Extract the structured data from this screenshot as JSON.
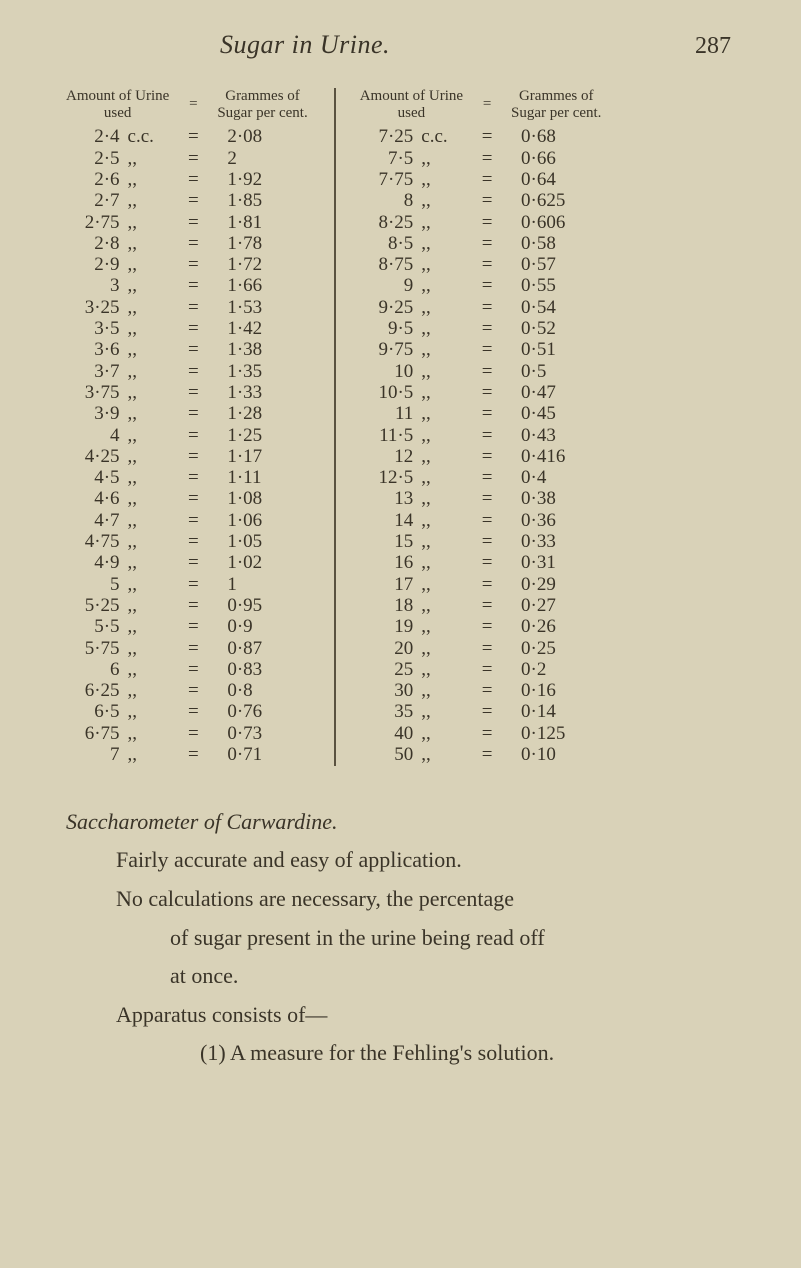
{
  "page": {
    "title": "Sugar in Urine.",
    "number": "287"
  },
  "table": {
    "header": {
      "col1_a": "Amount of Urine",
      "col1_b": "used",
      "eq1": "=",
      "col2_a": "Grammes of",
      "col2_b": "Sugar per cent.",
      "col3_a": "Amount of Urine",
      "col3_b": "used",
      "eq2": "=",
      "col4_a": "Grammes of",
      "col4_b": "Sugar per cent."
    },
    "left": [
      {
        "amount": "2·4",
        "unit": "c.c.",
        "eq": "=",
        "gram": "2·08"
      },
      {
        "amount": "2·5",
        "unit": ",,",
        "eq": "=",
        "gram": "2"
      },
      {
        "amount": "2·6",
        "unit": ",,",
        "eq": "=",
        "gram": "1·92"
      },
      {
        "amount": "2·7",
        "unit": ",,",
        "eq": "=",
        "gram": "1·85"
      },
      {
        "amount": "2·75",
        "unit": ",,",
        "eq": "=",
        "gram": "1·81"
      },
      {
        "amount": "2·8",
        "unit": ",,",
        "eq": "=",
        "gram": "1·78"
      },
      {
        "amount": "2·9",
        "unit": ",,",
        "eq": "=",
        "gram": "1·72"
      },
      {
        "amount": "3",
        "unit": ",,",
        "eq": "=",
        "gram": "1·66"
      },
      {
        "amount": "3·25",
        "unit": ",,",
        "eq": "=",
        "gram": "1·53"
      },
      {
        "amount": "3·5",
        "unit": ",,",
        "eq": "=",
        "gram": "1·42"
      },
      {
        "amount": "3·6",
        "unit": ",,",
        "eq": "=",
        "gram": "1·38"
      },
      {
        "amount": "3·7",
        "unit": ",,",
        "eq": "=",
        "gram": "1·35"
      },
      {
        "amount": "3·75",
        "unit": ",,",
        "eq": "=",
        "gram": "1·33"
      },
      {
        "amount": "3·9",
        "unit": ",,",
        "eq": "=",
        "gram": "1·28"
      },
      {
        "amount": "4",
        "unit": ",,",
        "eq": "=",
        "gram": "1·25"
      },
      {
        "amount": "4·25",
        "unit": ",,",
        "eq": "=",
        "gram": "1·17"
      },
      {
        "amount": "4·5",
        "unit": ",,",
        "eq": "=",
        "gram": "1·11"
      },
      {
        "amount": "4·6",
        "unit": ",,",
        "eq": "=",
        "gram": "1·08"
      },
      {
        "amount": "4·7",
        "unit": ",,",
        "eq": "=",
        "gram": "1·06"
      },
      {
        "amount": "4·75",
        "unit": ",,",
        "eq": "=",
        "gram": "1·05"
      },
      {
        "amount": "4·9",
        "unit": ",,",
        "eq": "=",
        "gram": "1·02"
      },
      {
        "amount": "5",
        "unit": ",,",
        "eq": "=",
        "gram": "1"
      },
      {
        "amount": "5·25",
        "unit": ",,",
        "eq": "=",
        "gram": "0·95"
      },
      {
        "amount": "5·5",
        "unit": ",,",
        "eq": "=",
        "gram": "0·9"
      },
      {
        "amount": "5·75",
        "unit": ",,",
        "eq": "=",
        "gram": "0·87"
      },
      {
        "amount": "6",
        "unit": ",,",
        "eq": "=",
        "gram": "0·83"
      },
      {
        "amount": "6·25",
        "unit": ",,",
        "eq": "=",
        "gram": "0·8"
      },
      {
        "amount": "6·5",
        "unit": ",,",
        "eq": "=",
        "gram": "0·76"
      },
      {
        "amount": "6·75",
        "unit": ",,",
        "eq": "=",
        "gram": "0·73"
      },
      {
        "amount": "7",
        "unit": ",,",
        "eq": "=",
        "gram": "0·71"
      }
    ],
    "right": [
      {
        "amount": "7·25",
        "unit": "c.c.",
        "eq": "=",
        "gram": "0·68"
      },
      {
        "amount": "7·5",
        "unit": ",,",
        "eq": "=",
        "gram": "0·66"
      },
      {
        "amount": "7·75",
        "unit": ",,",
        "eq": "=",
        "gram": "0·64"
      },
      {
        "amount": "8",
        "unit": ",,",
        "eq": "=",
        "gram": "0·625"
      },
      {
        "amount": "8·25",
        "unit": ",,",
        "eq": "=",
        "gram": "0·606"
      },
      {
        "amount": "8·5",
        "unit": ",,",
        "eq": "=",
        "gram": "0·58"
      },
      {
        "amount": "8·75",
        "unit": ",,",
        "eq": "=",
        "gram": "0·57"
      },
      {
        "amount": "9",
        "unit": ",,",
        "eq": "=",
        "gram": "0·55"
      },
      {
        "amount": "9·25",
        "unit": ",,",
        "eq": "=",
        "gram": "0·54"
      },
      {
        "amount": "9·5",
        "unit": ",,",
        "eq": "=",
        "gram": "0·52"
      },
      {
        "amount": "9·75",
        "unit": ",,",
        "eq": "=",
        "gram": "0·51"
      },
      {
        "amount": "10",
        "unit": ",,",
        "eq": "=",
        "gram": "0·5"
      },
      {
        "amount": "10·5",
        "unit": ",,",
        "eq": "=",
        "gram": "0·47"
      },
      {
        "amount": "11",
        "unit": ",,",
        "eq": "=",
        "gram": "0·45"
      },
      {
        "amount": "11·5",
        "unit": ",,",
        "eq": "=",
        "gram": "0·43"
      },
      {
        "amount": "12",
        "unit": ",,",
        "eq": "=",
        "gram": "0·416"
      },
      {
        "amount": "12·5",
        "unit": ",,",
        "eq": "=",
        "gram": "0·4"
      },
      {
        "amount": "13",
        "unit": ",,",
        "eq": "=",
        "gram": "0·38"
      },
      {
        "amount": "14",
        "unit": ",,",
        "eq": "=",
        "gram": "0·36"
      },
      {
        "amount": "15",
        "unit": ",,",
        "eq": "=",
        "gram": "0·33"
      },
      {
        "amount": "16",
        "unit": ",,",
        "eq": "=",
        "gram": "0·31"
      },
      {
        "amount": "17",
        "unit": ",,",
        "eq": "=",
        "gram": "0·29"
      },
      {
        "amount": "18",
        "unit": ",,",
        "eq": "=",
        "gram": "0·27"
      },
      {
        "amount": "19",
        "unit": ",,",
        "eq": "=",
        "gram": "0·26"
      },
      {
        "amount": "20",
        "unit": ",,",
        "eq": "=",
        "gram": "0·25"
      },
      {
        "amount": "25",
        "unit": ",,",
        "eq": "=",
        "gram": "0·2"
      },
      {
        "amount": "30",
        "unit": ",,",
        "eq": "=",
        "gram": "0·16"
      },
      {
        "amount": "35",
        "unit": ",,",
        "eq": "=",
        "gram": "0·14"
      },
      {
        "amount": "40",
        "unit": ",,",
        "eq": "=",
        "gram": "0·125"
      },
      {
        "amount": "50",
        "unit": ",,",
        "eq": "=",
        "gram": "0·10"
      }
    ]
  },
  "body": {
    "section_title": "Saccharometer of Carwardine.",
    "line1": "Fairly accurate and easy of application.",
    "line2": "No calculations are necessary, the percentage",
    "line3": "of sugar present in the urine being read off",
    "line4": "at once.",
    "line5": "Apparatus consists of—",
    "line6": "(1) A measure for the Fehling's solution."
  }
}
